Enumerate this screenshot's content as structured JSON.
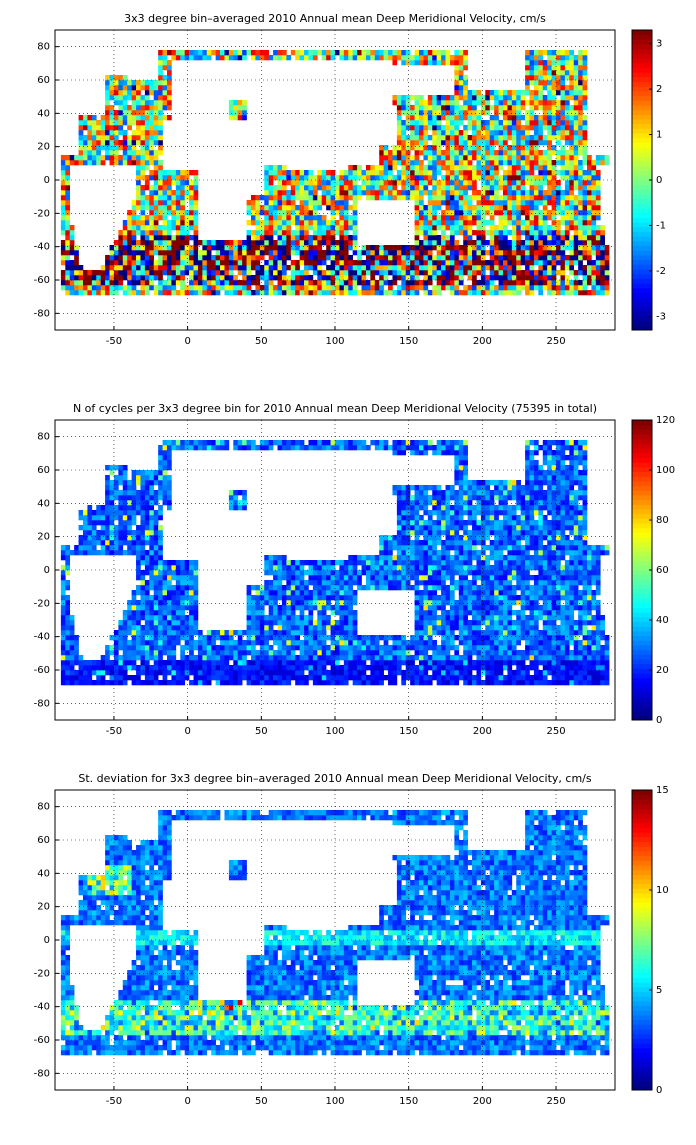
{
  "chart_data": [
    {
      "type": "heatmap",
      "title": "3x3 degree bin–averaged 2010 Annual mean Deep Meridional Velocity, cm/s",
      "xlabel": "",
      "ylabel": "",
      "xlim": [
        -90,
        290
      ],
      "ylim": [
        -90,
        90
      ],
      "x_ticks": [
        -50,
        0,
        50,
        100,
        150,
        200,
        250
      ],
      "y_ticks": [
        -80,
        -60,
        -40,
        -20,
        0,
        20,
        40,
        60,
        80
      ],
      "grid": "dotted",
      "colorbar": {
        "colormap": "jet",
        "range": [
          -3.3,
          3.3
        ],
        "ticks": [
          -3,
          -2,
          -1,
          0,
          1,
          2,
          3
        ]
      },
      "fields": "fields"
    },
    {
      "type": "heatmap",
      "title": "N of cycles per 3x3 degree bin for 2010 Annual mean Deep Meridional Velocity (75395 in total)",
      "xlabel": "",
      "ylabel": "",
      "xlim": [
        -90,
        290
      ],
      "ylim": [
        -90,
        90
      ],
      "x_ticks": [
        -50,
        0,
        50,
        100,
        150,
        200,
        250
      ],
      "y_ticks": [
        -80,
        -60,
        -40,
        -20,
        0,
        20,
        40,
        60,
        80
      ],
      "grid": "dotted",
      "colorbar": {
        "colormap": "jet",
        "range": [
          0,
          120
        ],
        "ticks": [
          0,
          20,
          40,
          60,
          80,
          100,
          120
        ]
      },
      "fields": "fields"
    },
    {
      "type": "heatmap",
      "title": "St. deviation for 3x3 degree bin–averaged 2010 Annual mean Deep Meridional Velocity, cm/s",
      "xlabel": "",
      "ylabel": "",
      "xlim": [
        -90,
        290
      ],
      "ylim": [
        -90,
        90
      ],
      "x_ticks": [
        -50,
        0,
        50,
        100,
        150,
        200,
        250
      ],
      "y_ticks": [
        -80,
        -60,
        -40,
        -20,
        0,
        20,
        40,
        60,
        80
      ],
      "grid": "dotted",
      "colorbar": {
        "colormap": "jet",
        "range": [
          0,
          15
        ],
        "ticks": [
          0,
          5,
          10,
          15
        ]
      },
      "fields": "fields"
    }
  ],
  "colors": {
    "land": "#ffffff",
    "coastline": "#000000",
    "frame": "#000000"
  }
}
